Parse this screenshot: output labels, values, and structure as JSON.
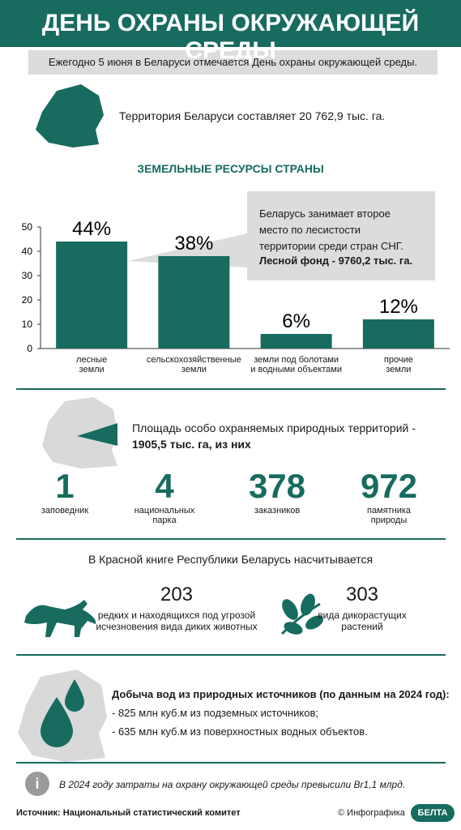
{
  "header": {
    "title": "ДЕНЬ ОХРАНЫ ОКРУЖАЮЩЕЙ СРЕДЫ"
  },
  "intro": "Ежегодно 5 июня в Беларуси отмечается День охраны окружающей среды.",
  "territory": "Территория Беларуси составляет 20 762,9 тыс. га.",
  "chart_data": {
    "type": "bar",
    "title": "ЗЕМЕЛЬНЫЕ РЕСУРСЫ СТРАНЫ",
    "categories": [
      "лесные\nземли",
      "сельскохозяйственные\nземли",
      "земли под болотами\nи водными объектами",
      "прочие\nземли"
    ],
    "values": [
      44,
      38,
      6,
      12
    ],
    "value_labels": [
      "44%",
      "38%",
      "6%",
      "12%"
    ],
    "color": "#176b5f",
    "ylim": [
      0,
      50
    ],
    "yticks": [
      0,
      10,
      20,
      30,
      40,
      50
    ],
    "grid": false,
    "callout": {
      "text": "Беларусь занимает второе\nместо по лесистости\nтерритории среди стран СНГ.",
      "bold": "Лесной фонд - 9760,2 тыс. га."
    }
  },
  "protected": {
    "text": "Площадь особо охраняемых природных территорий -",
    "bold": "1905,5 тыс. га, из них",
    "stats": [
      {
        "value": 1,
        "label": "заповедник"
      },
      {
        "value": 4,
        "label": "национальных\nпарка"
      },
      {
        "value": 378,
        "label": "заказников"
      },
      {
        "value": 972,
        "label": "памятника\nприроды"
      }
    ]
  },
  "red_book": {
    "title": "В Красной книге Республики Беларусь насчитывается",
    "items": [
      {
        "value": 203,
        "label": "редких и находящихся под угрозой\nисчезновения вида диких животных"
      },
      {
        "value": 303,
        "label": "вида дикорастущих\nрастений"
      }
    ]
  },
  "water": {
    "title": "Добыча вод из природных источников (по данным на 2024 год):",
    "items": [
      "- 825 млн куб.м из подземных источников;",
      "- 635 млн куб.м из поверхностных водных объектов."
    ]
  },
  "note": "В 2024 году затраты на охрану окружающей среды превысили Br1,1 млрд.",
  "footer": {
    "source": "Источник: Национальный статистический комитет",
    "credit": "© Инфографика",
    "logo": "БЕЛТА"
  }
}
